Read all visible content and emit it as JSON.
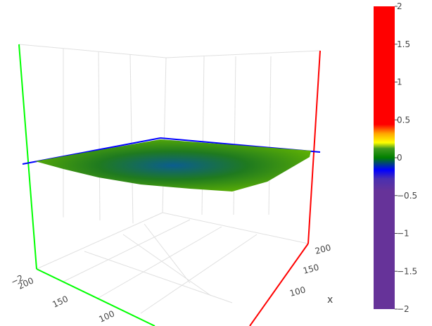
{
  "chart_data": {
    "type": "surface3d",
    "axes": {
      "x": {
        "title": "x",
        "ticks": [
          "200",
          "150",
          "100"
        ],
        "color": "#ff0000"
      },
      "y": {
        "title": "",
        "ticks": [
          "200",
          "150",
          "100"
        ],
        "color": "#00ff00"
      },
      "z": {
        "title": "",
        "ticks": [
          "−2"
        ],
        "color": "#0000ff"
      }
    },
    "surface_level": 0,
    "surface_range": [
      -0.4,
      0.3
    ],
    "colorbar": {
      "range": [
        -2,
        2
      ],
      "ticks": [
        "2",
        "1.5",
        "1",
        "0.5",
        "0",
        "−0.5",
        "−1",
        "−1.5",
        "−2"
      ],
      "tick_values": [
        2,
        1.5,
        1,
        0.5,
        0,
        -0.5,
        -1,
        -1.5,
        -2
      ],
      "colorscale": [
        [
          0.0,
          "#663399"
        ],
        [
          0.39,
          "#663399"
        ],
        [
          0.43,
          "#4a2fb0"
        ],
        [
          0.46,
          "#0000ff"
        ],
        [
          0.5,
          "#008000"
        ],
        [
          0.53,
          "#3f9a1f"
        ],
        [
          0.55,
          "#ffff00"
        ],
        [
          0.58,
          "#ffa500"
        ],
        [
          0.61,
          "#ff0000"
        ],
        [
          1.0,
          "#ff0000"
        ]
      ]
    },
    "colors": {
      "background": "#ffffff",
      "gridline": "#e0e0e0",
      "surface_low": "#0b5d8f",
      "surface_mid": "#1f7a1f",
      "surface_high": "#66b800"
    }
  }
}
